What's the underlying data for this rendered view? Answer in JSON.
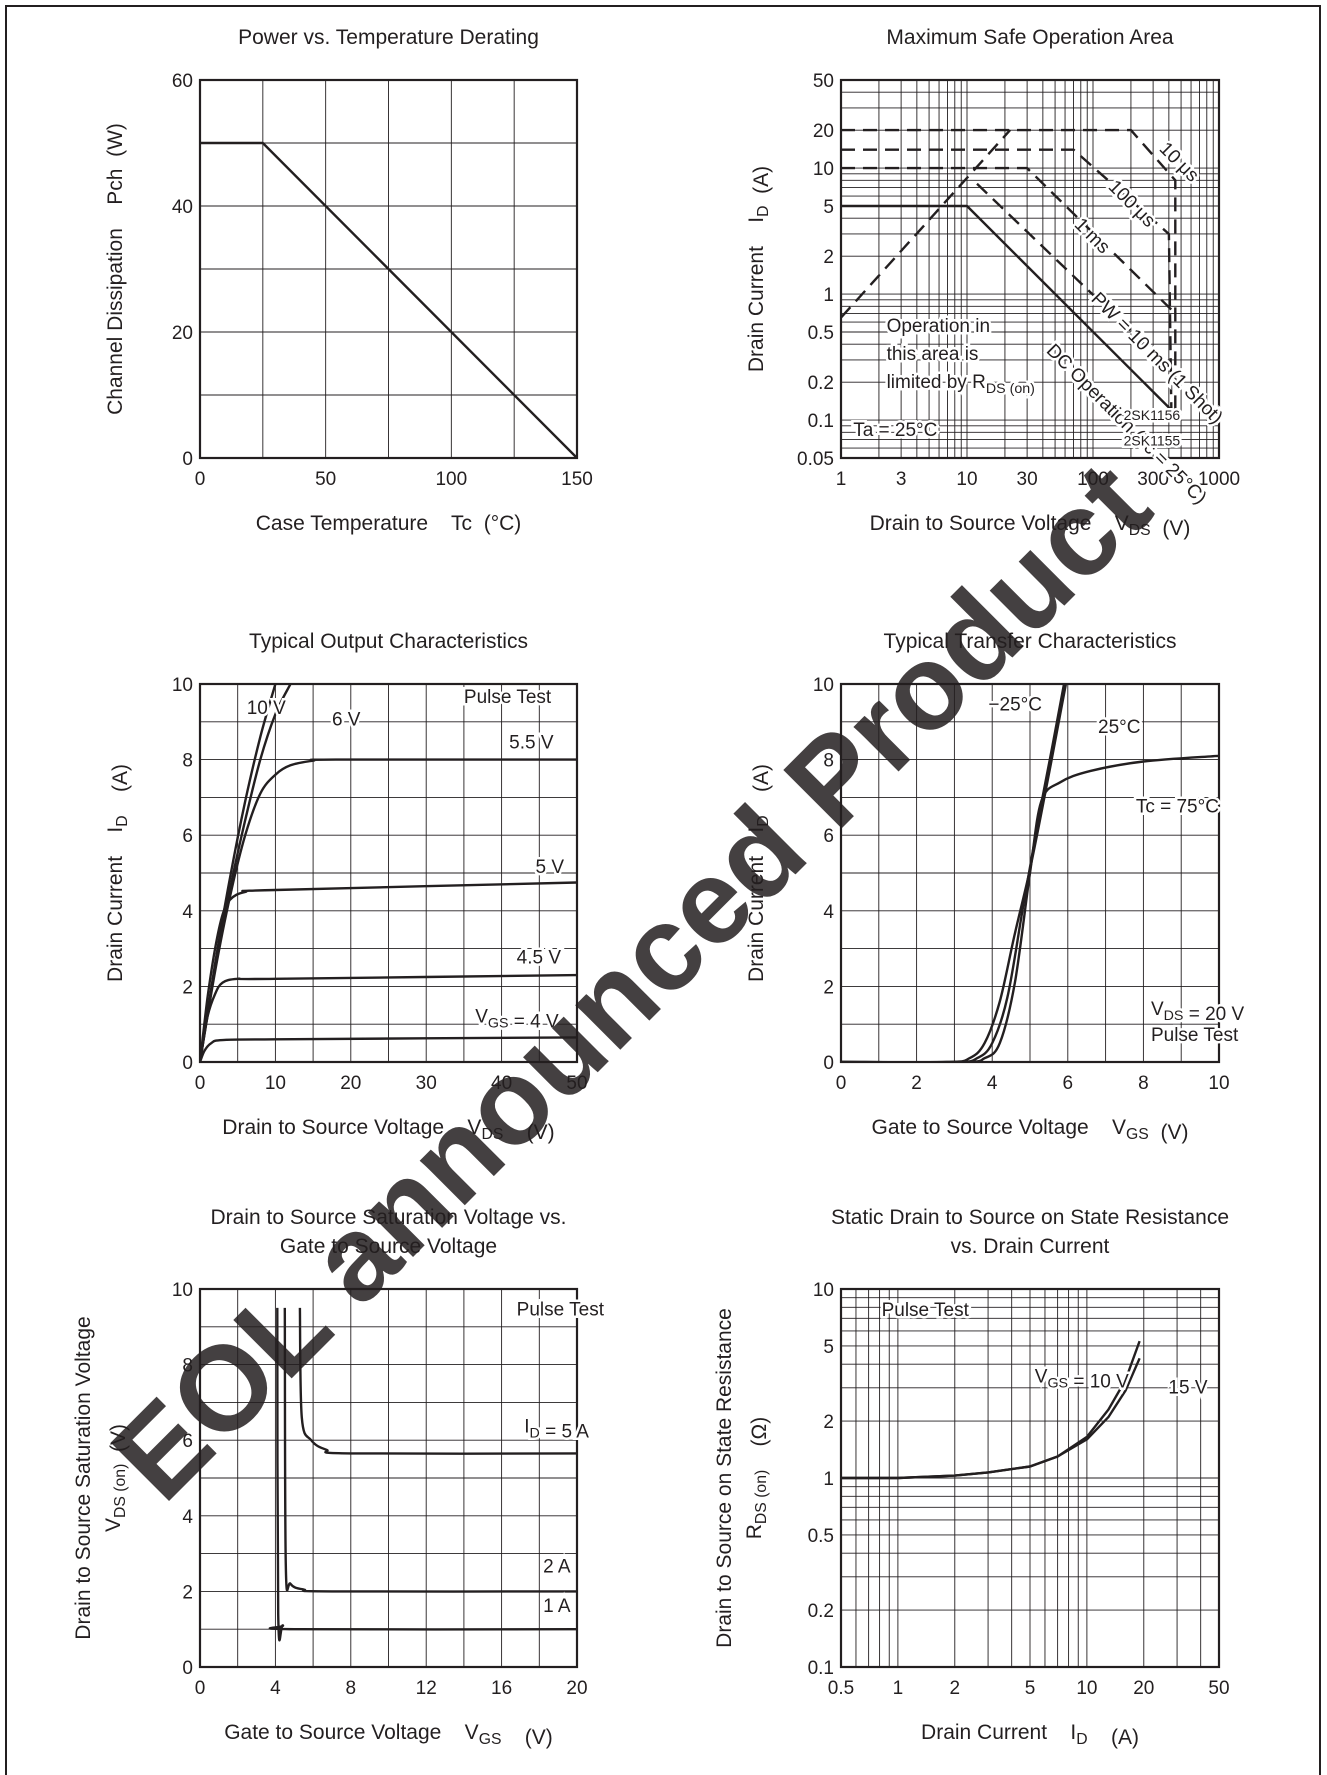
{
  "colors": {
    "ink": "#231f20",
    "watermark": "#ee2a31"
  },
  "watermark": {
    "text": "EOL announced Product"
  },
  "chart_data": [
    {
      "id": "derating",
      "type": "line",
      "title": "Power vs. Temperature Derating",
      "title_lines": [
        "Power vs. Temperature Derating"
      ],
      "xlabel": "Case Temperature    Tc  (°C)",
      "ylabel": "Channel Dissipation    Pch  (W)",
      "x_scale": "linear",
      "y_scale": "linear",
      "xlim": [
        0,
        150
      ],
      "ylim": [
        0,
        60
      ],
      "x_ticks": [
        0,
        50,
        100,
        150
      ],
      "y_ticks": [
        0,
        20,
        40,
        60
      ],
      "x_grid": [
        25,
        50,
        75,
        100,
        125
      ],
      "y_grid": [
        10,
        20,
        30,
        40,
        50
      ],
      "grid": true,
      "series": [
        {
          "points": [
            [
              0,
              50
            ],
            [
              25,
              50
            ],
            [
              150,
              0
            ]
          ]
        }
      ],
      "annotations": []
    },
    {
      "id": "soa",
      "type": "line",
      "title": "Maximum Safe Operation Area",
      "title_lines": [
        "Maximum Safe Operation Area"
      ],
      "xlabel": "Drain to Source Voltage    V_DS  (V)",
      "ylabel": "Drain Current    I_D  (A)",
      "x_scale": "log",
      "y_scale": "log",
      "xlim": [
        1,
        1000
      ],
      "ylim": [
        0.05,
        50
      ],
      "x_ticks": [
        1,
        3,
        10,
        30,
        100,
        300,
        1000
      ],
      "y_ticks": [
        0.05,
        0.1,
        0.2,
        0.5,
        1,
        2,
        5,
        10,
        20,
        50
      ],
      "grid": true,
      "series": [
        {
          "name": "Operation in this area is limited by RDS (on)",
          "dash": true,
          "points": [
            [
              1,
              0.65
            ],
            [
              22,
              20
            ]
          ]
        },
        {
          "name": "10 μs",
          "dash": true,
          "points": [
            [
              1,
              20
            ],
            [
              200,
              20
            ],
            [
              450,
              8
            ],
            [
              450,
              0.1
            ]
          ]
        },
        {
          "name": "100 μs",
          "dash": true,
          "points": [
            [
              1,
              14
            ],
            [
              70,
              14
            ],
            [
              400,
              3
            ],
            [
              420,
              0.1
            ]
          ]
        },
        {
          "name": "1 ms",
          "dash": true,
          "points": [
            [
              1,
              10
            ],
            [
              30,
              10
            ],
            [
              420,
              0.75
            ]
          ]
        },
        {
          "name": "PW = 10 ms (1 Shot)",
          "dash": true,
          "points": [
            [
              12,
              7.5
            ],
            [
              420,
              0.25
            ]
          ]
        },
        {
          "name": "DC Operation (Tc = 25°C)",
          "dash": false,
          "points": [
            [
              1,
              5
            ],
            [
              10,
              5
            ],
            [
              420,
              0.12
            ]
          ]
        }
      ],
      "annotations": [
        {
          "text": "10 μs",
          "x": 330,
          "y": 14,
          "rotate": 45
        },
        {
          "text": "100 μs",
          "x": 130,
          "y": 7,
          "rotate": 45
        },
        {
          "text": "1 ms",
          "x": 70,
          "y": 3.5,
          "rotate": 45
        },
        {
          "text": "PW = 10 ms (1 Shot)",
          "x": 95,
          "y": 0.9,
          "rotate": 45
        },
        {
          "text": "DC Operation (Tc = 25°C)",
          "x": 42,
          "y": 0.35,
          "rotate": 45
        },
        {
          "text": "Operation in",
          "x": 2.3,
          "y": 0.5
        },
        {
          "text": "this area is",
          "x": 2.3,
          "y": 0.3
        },
        {
          "text": "limited by R_DS (on)",
          "x": 2.3,
          "y": 0.18
        },
        {
          "text": "Ta = 25°C",
          "x": 1.25,
          "y": 0.075
        },
        {
          "text": "2SK1156",
          "x": 175,
          "y": 0.1,
          "small": true
        },
        {
          "text": "2SK1155",
          "x": 175,
          "y": 0.063,
          "small": true
        }
      ]
    },
    {
      "id": "output",
      "type": "line",
      "title": "Typical Output Characteristics",
      "title_lines": [
        "Typical Output Characteristics"
      ],
      "xlabel": "Drain to Source Voltage    V_DS    (V)",
      "ylabel": "Drain Current    I_D    (A)",
      "x_scale": "linear",
      "y_scale": "linear",
      "xlim": [
        0,
        50
      ],
      "ylim": [
        0,
        10
      ],
      "x_ticks": [
        0,
        10,
        20,
        30,
        40,
        50
      ],
      "y_ticks": [
        0,
        2,
        4,
        6,
        8,
        10
      ],
      "x_grid": [
        5,
        10,
        15,
        20,
        25,
        30,
        35,
        40,
        45
      ],
      "y_grid": [
        1,
        2,
        3,
        4,
        5,
        6,
        7,
        8,
        9
      ],
      "grid": true,
      "series": [
        {
          "name": "10 V",
          "points": [
            [
              0,
              0
            ],
            [
              2,
              2.6
            ],
            [
              4,
              4.9
            ],
            [
              6,
              6.9
            ],
            [
              8,
              8.6
            ],
            [
              10,
              10
            ]
          ]
        },
        {
          "name": "6 V",
          "points": [
            [
              0,
              0
            ],
            [
              2,
              2.5
            ],
            [
              4,
              4.6
            ],
            [
              6,
              6.4
            ],
            [
              8,
              8
            ],
            [
              10,
              9.2
            ],
            [
              12,
              10
            ]
          ]
        },
        {
          "name": "5.5 V",
          "points": [
            [
              0,
              0
            ],
            [
              2,
              2.4
            ],
            [
              4,
              4.4
            ],
            [
              6,
              6
            ],
            [
              8,
              7.1
            ],
            [
              10,
              7.6
            ],
            [
              12,
              7.85
            ],
            [
              15,
              7.97
            ],
            [
              18,
              8
            ],
            [
              50,
              8
            ]
          ]
        },
        {
          "name": "5 V",
          "points": [
            [
              0,
              0
            ],
            [
              1,
              1.7
            ],
            [
              2,
              3
            ],
            [
              3,
              3.9
            ],
            [
              4,
              4.3
            ],
            [
              6,
              4.5
            ],
            [
              10,
              4.55
            ],
            [
              50,
              4.75
            ]
          ]
        },
        {
          "name": "4.5 V",
          "points": [
            [
              0,
              0
            ],
            [
              1,
              1.2
            ],
            [
              2,
              1.8
            ],
            [
              3,
              2.1
            ],
            [
              5,
              2.2
            ],
            [
              10,
              2.2
            ],
            [
              50,
              2.3
            ]
          ]
        },
        {
          "name": "VGS = 4 V",
          "points": [
            [
              0,
              0
            ],
            [
              0.6,
              0.3
            ],
            [
              1.5,
              0.5
            ],
            [
              3,
              0.58
            ],
            [
              10,
              0.6
            ],
            [
              50,
              0.65
            ]
          ]
        }
      ],
      "annotations": [
        {
          "text": "Pulse Test",
          "x": 35,
          "y": 9.5
        },
        {
          "text": "10 V",
          "x": 6.2,
          "y": 9.2
        },
        {
          "text": "6 V",
          "x": 17.5,
          "y": 8.9
        },
        {
          "text": "5.5 V",
          "x": 41,
          "y": 8.3
        },
        {
          "text": "5 V",
          "x": 44.5,
          "y": 5
        },
        {
          "text": "4.5 V",
          "x": 42,
          "y": 2.6
        },
        {
          "text": "V_GS = 4 V",
          "x": 36.5,
          "y": 1.05
        }
      ]
    },
    {
      "id": "transfer",
      "type": "line",
      "title": "Typical Transfer Characteristics",
      "title_lines": [
        "Typical Transfer Characteristics"
      ],
      "xlabel": "Gate to Source Voltage    V_GS  (V)",
      "ylabel": "Drain Current    I_D    (A)",
      "x_scale": "linear",
      "y_scale": "linear",
      "xlim": [
        0,
        10
      ],
      "ylim": [
        0,
        10
      ],
      "x_ticks": [
        0,
        2,
        4,
        6,
        8,
        10
      ],
      "y_ticks": [
        0,
        2,
        4,
        6,
        8,
        10
      ],
      "x_grid": [
        1,
        2,
        3,
        4,
        5,
        6,
        7,
        8,
        9
      ],
      "y_grid": [
        1,
        2,
        3,
        4,
        5,
        6,
        7,
        8,
        9
      ],
      "grid": true,
      "series": [
        {
          "name": "−25°C",
          "points": [
            [
              0,
              0
            ],
            [
              2.8,
              0
            ],
            [
              3.4,
              0.1
            ],
            [
              3.8,
              0.5
            ],
            [
              4.2,
              1.6
            ],
            [
              4.6,
              3.4
            ],
            [
              5,
              5.1
            ],
            [
              5.4,
              7.1
            ],
            [
              5.8,
              9.2
            ],
            [
              5.95,
              10
            ]
          ]
        },
        {
          "name": "25°C",
          "points": [
            [
              0,
              0
            ],
            [
              3,
              0
            ],
            [
              3.6,
              0.1
            ],
            [
              4,
              0.5
            ],
            [
              4.4,
              1.7
            ],
            [
              4.8,
              4
            ],
            [
              5.2,
              6.3
            ],
            [
              5.6,
              8.4
            ],
            [
              5.9,
              10
            ]
          ]
        },
        {
          "name": "Tc = 75°C",
          "points": [
            [
              0,
              0
            ],
            [
              3.2,
              0
            ],
            [
              3.8,
              0.1
            ],
            [
              4.2,
              0.5
            ],
            [
              4.6,
              2.1
            ],
            [
              5,
              5
            ],
            [
              5.3,
              6.9
            ],
            [
              5.8,
              7.4
            ],
            [
              6.6,
              7.7
            ],
            [
              8,
              7.95
            ],
            [
              10,
              8.1
            ]
          ]
        }
      ],
      "annotations": [
        {
          "text": "−25°C",
          "x": 3.9,
          "y": 9.3
        },
        {
          "text": "25°C",
          "x": 6.8,
          "y": 8.7
        },
        {
          "text": "Tc = 75°C",
          "x": 7.8,
          "y": 6.6
        },
        {
          "text": "V_DS = 20 V",
          "x": 8.2,
          "y": 1.25
        },
        {
          "text": "Pulse Test",
          "x": 8.2,
          "y": 0.55
        }
      ]
    },
    {
      "id": "saturation",
      "type": "line",
      "title": "Drain to Source Saturation Voltage vs. Gate to Source Voltage",
      "title_lines": [
        "Drain to Source Saturation Voltage vs.",
        "Gate to Source Voltage"
      ],
      "xlabel": "Gate to Source Voltage    V_GS    (V)",
      "ylabel": "Drain to Source Saturation Voltage",
      "ylabel2": "V_DS (on)  (V)",
      "x_scale": "linear",
      "y_scale": "linear",
      "xlim": [
        0,
        20
      ],
      "ylim": [
        0,
        10
      ],
      "x_ticks": [
        0,
        4,
        8,
        12,
        16,
        20
      ],
      "y_ticks": [
        0,
        2,
        4,
        6,
        8,
        10
      ],
      "x_grid": [
        2,
        4,
        6,
        8,
        10,
        12,
        14,
        16,
        18
      ],
      "y_grid": [
        1,
        2,
        3,
        4,
        5,
        6,
        7,
        8,
        9
      ],
      "grid": true,
      "series": [
        {
          "name": "I_D = 5 A",
          "points": [
            [
              5.3,
              9.5
            ],
            [
              5.4,
              6.6
            ],
            [
              5.9,
              6
            ],
            [
              6.7,
              5.75
            ],
            [
              8,
              5.65
            ],
            [
              20,
              5.65
            ]
          ]
        },
        {
          "name": "2 A",
          "points": [
            [
              4.5,
              9.5
            ],
            [
              4.55,
              2.7
            ],
            [
              4.8,
              2.2
            ],
            [
              5.5,
              2.05
            ],
            [
              7,
              2
            ],
            [
              20,
              2
            ]
          ]
        },
        {
          "name": "1 A",
          "points": [
            [
              4.1,
              9.5
            ],
            [
              4.15,
              1.4
            ],
            [
              4.4,
              1.1
            ],
            [
              5,
              1
            ],
            [
              20,
              1
            ]
          ]
        }
      ],
      "annotations": [
        {
          "text": "Pulse Test",
          "x": 16.8,
          "y": 9.3
        },
        {
          "text": "I_D = 5 A",
          "x": 17.2,
          "y": 6.2
        },
        {
          "text": "2 A",
          "x": 18.2,
          "y": 2.5
        },
        {
          "text": "1 A",
          "x": 18.2,
          "y": 1.45
        }
      ]
    },
    {
      "id": "resistance",
      "type": "line",
      "title": "Static Drain to Source on State Resistance vs. Drain Current",
      "title_lines": [
        "Static Drain to Source on State Resistance",
        "vs. Drain Current"
      ],
      "xlabel": "Drain Current    I_D    (A)",
      "ylabel": "Drain to Source on State Resistance",
      "ylabel2": "R_DS (on)    (Ω)",
      "x_scale": "log",
      "y_scale": "log",
      "xlim": [
        0.5,
        50
      ],
      "ylim": [
        0.1,
        10
      ],
      "x_ticks": [
        0.5,
        1,
        2,
        5,
        10,
        20,
        50
      ],
      "y_ticks": [
        0.1,
        0.2,
        0.5,
        1,
        2,
        5,
        10
      ],
      "grid": true,
      "series": [
        {
          "name": "V_GS = 10 V",
          "points": [
            [
              0.5,
              1
            ],
            [
              1,
              1
            ],
            [
              2,
              1.03
            ],
            [
              3,
              1.07
            ],
            [
              5,
              1.15
            ],
            [
              7,
              1.3
            ],
            [
              10,
              1.65
            ],
            [
              13,
              2.3
            ],
            [
              16,
              3.3
            ],
            [
              19,
              5.3
            ]
          ]
        },
        {
          "name": "15 V",
          "points": [
            [
              0.5,
              1
            ],
            [
              1,
              1
            ],
            [
              2,
              1.03
            ],
            [
              3,
              1.07
            ],
            [
              5,
              1.15
            ],
            [
              7,
              1.3
            ],
            [
              10,
              1.6
            ],
            [
              13,
              2.1
            ],
            [
              16,
              2.9
            ],
            [
              19,
              4.3
            ]
          ]
        }
      ],
      "annotations": [
        {
          "text": "Pulse Test",
          "x": 0.82,
          "y": 7.2
        },
        {
          "text": "V_GS = 10 V",
          "x": 5.3,
          "y": 3.2
        },
        {
          "text": "15 V",
          "x": 27,
          "y": 2.8
        }
      ]
    }
  ]
}
